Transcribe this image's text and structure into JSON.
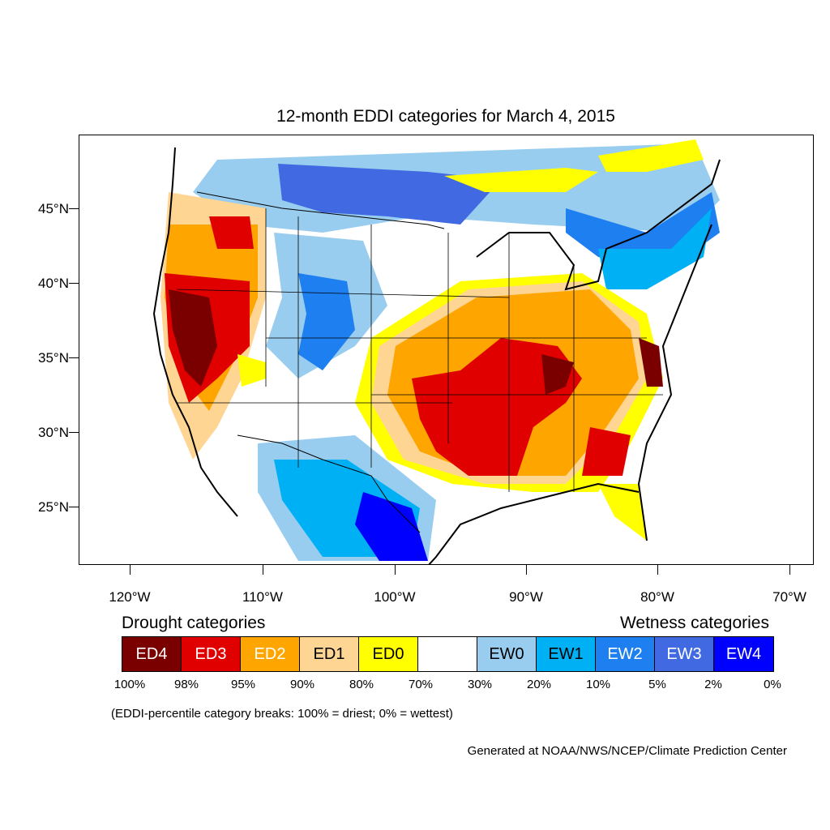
{
  "title": "12-month EDDI categories for March 4, 2015",
  "latitude_labels": [
    "45°N",
    "40°N",
    "35°N",
    "30°N",
    "25°N"
  ],
  "longitude_labels": [
    "120°W",
    "110°W",
    "100°W",
    "90°W",
    "80°W",
    "70°W"
  ],
  "legend": {
    "drought_heading": "Drought categories",
    "wetness_heading": "Wetness categories",
    "categories": [
      {
        "label": "ED4",
        "color": "#7a0000"
      },
      {
        "label": "ED3",
        "color": "#e10000"
      },
      {
        "label": "ED2",
        "color": "#ffa500"
      },
      {
        "label": "ED1",
        "color": "#ffd594"
      },
      {
        "label": "ED0",
        "color": "#ffff00"
      },
      {
        "label": "",
        "color": "#ffffff"
      },
      {
        "label": "EW0",
        "color": "#98cdf0"
      },
      {
        "label": "EW1",
        "color": "#00b0f5"
      },
      {
        "label": "EW2",
        "color": "#1e7ff0"
      },
      {
        "label": "EW3",
        "color": "#4169e1"
      },
      {
        "label": "EW4",
        "color": "#0000ff"
      }
    ],
    "percentile_breaks": [
      "100%",
      "98%",
      "95%",
      "90%",
      "80%",
      "70%",
      "30%",
      "20%",
      "10%",
      "5%",
      "2%",
      "0%"
    ]
  },
  "note": "(EDDI-percentile category breaks: 100% = driest; 0% = wettest)",
  "credit": "Generated at NOAA/NWS/NCEP/Climate Prediction Center"
}
